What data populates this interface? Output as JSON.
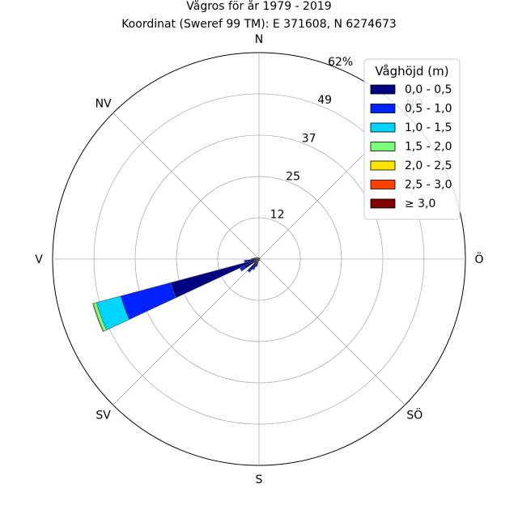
{
  "chart_data": {
    "type": "windrose",
    "title": "Vågros för år 1979 - 2019",
    "subtitle": "Koordinat (Sweref 99 TM): E 371608, N 6274673",
    "directions": [
      "N",
      "Ö",
      "S",
      "V",
      "NV",
      "SV",
      "SÖ",
      "NÖ"
    ],
    "direction_labels": {
      "N": "N",
      "NE": "NÖ",
      "E": "Ö",
      "SE": "SÖ",
      "S": "S",
      "SW": "SV",
      "W": "V",
      "NW": "NV"
    },
    "r_ticks": [
      "12",
      "25",
      "37",
      "49",
      "62%"
    ],
    "r_tick_values": [
      12.4,
      24.8,
      37.2,
      49.6,
      62
    ],
    "r_max": 62,
    "legend": {
      "title": "Våghöjd (m)",
      "placement": "top-right",
      "bins": [
        "0,0 - 0,5",
        "0,5 - 1,0",
        "1,0 - 1,5",
        "1,5 - 2,0",
        "2,0 - 2,5",
        "2,5 - 3,0",
        "≥ 3,0"
      ],
      "colors": [
        "#000080",
        "#0022ff",
        "#00d5ff",
        "#7bff7b",
        "#ffe500",
        "#ff4000",
        "#800000"
      ]
    },
    "sector_width_deg": 10,
    "sectors": [
      {
        "direction_deg": 250,
        "values": [
          27.5,
          15.5,
          7.5,
          1.0,
          0.2,
          0,
          0
        ]
      },
      {
        "direction_deg": 240,
        "values": [
          5.0,
          1.2,
          0.2,
          0,
          0,
          0,
          0
        ]
      },
      {
        "direction_deg": 260,
        "values": [
          3.5,
          0.8,
          0.2,
          0,
          0,
          0,
          0
        ]
      },
      {
        "direction_deg": 270,
        "values": [
          1.8,
          0.4,
          0.1,
          0,
          0,
          0,
          0
        ]
      },
      {
        "direction_deg": 280,
        "values": [
          1.2,
          0.3,
          0,
          0,
          0,
          0,
          0
        ]
      },
      {
        "direction_deg": 290,
        "values": [
          0.8,
          0.2,
          0,
          0,
          0,
          0,
          0
        ]
      },
      {
        "direction_deg": 300,
        "values": [
          0.6,
          0.1,
          0,
          0,
          0,
          0,
          0
        ]
      },
      {
        "direction_deg": 310,
        "values": [
          0.4,
          0.1,
          0,
          0,
          0,
          0,
          0
        ]
      },
      {
        "direction_deg": 320,
        "values": [
          0.4,
          0,
          0,
          0,
          0,
          0,
          0
        ]
      },
      {
        "direction_deg": 330,
        "values": [
          0.4,
          0,
          0,
          0,
          0,
          0,
          0
        ]
      },
      {
        "direction_deg": 340,
        "values": [
          0.4,
          0,
          0,
          0,
          0,
          0,
          0
        ]
      },
      {
        "direction_deg": 350,
        "values": [
          0.4,
          0,
          0,
          0,
          0,
          0,
          0
        ]
      },
      {
        "direction_deg": 0,
        "values": [
          0.3,
          0,
          0,
          0,
          0,
          0,
          0
        ]
      },
      {
        "direction_deg": 20,
        "values": [
          0.3,
          0,
          0,
          0,
          0,
          0,
          0
        ]
      },
      {
        "direction_deg": 40,
        "values": [
          0.4,
          0,
          0,
          0,
          0,
          0,
          0
        ]
      },
      {
        "direction_deg": 60,
        "values": [
          0.3,
          0,
          0,
          0,
          0,
          0,
          0
        ]
      },
      {
        "direction_deg": 80,
        "values": [
          0.3,
          0,
          0,
          0,
          0,
          0,
          0
        ]
      },
      {
        "direction_deg": 100,
        "values": [
          0.3,
          0,
          0,
          0,
          0,
          0,
          0
        ]
      },
      {
        "direction_deg": 120,
        "values": [
          0.3,
          0,
          0,
          0,
          0,
          0,
          0
        ]
      },
      {
        "direction_deg": 140,
        "values": [
          0.3,
          0,
          0,
          0,
          0,
          0,
          0
        ]
      },
      {
        "direction_deg": 160,
        "values": [
          0.4,
          0,
          0,
          0,
          0,
          0,
          0
        ]
      },
      {
        "direction_deg": 180,
        "values": [
          0.4,
          0,
          0,
          0,
          0,
          0,
          0
        ]
      },
      {
        "direction_deg": 190,
        "values": [
          0.6,
          0.1,
          0,
          0,
          0,
          0,
          0
        ]
      },
      {
        "direction_deg": 200,
        "values": [
          2.0,
          0.4,
          0,
          0,
          0,
          0,
          0
        ]
      },
      {
        "direction_deg": 210,
        "values": [
          3.0,
          0.6,
          0,
          0,
          0,
          0,
          0
        ]
      },
      {
        "direction_deg": 220,
        "values": [
          4.0,
          0.8,
          0.1,
          0,
          0,
          0,
          0
        ]
      },
      {
        "direction_deg": 230,
        "values": [
          1.5,
          0.3,
          0,
          0,
          0,
          0,
          0
        ]
      }
    ],
    "grid": true
  }
}
